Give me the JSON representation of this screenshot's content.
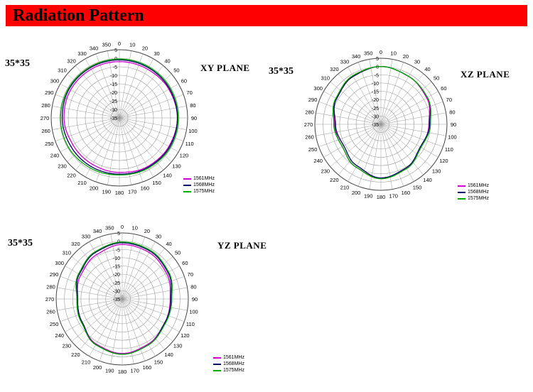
{
  "header": {
    "title": "Radiation Pattern",
    "bar_color": "#ff0000"
  },
  "chart_data": [
    {
      "type": "polar",
      "title": "XY  PLANE",
      "size_label": "35*35",
      "angle_ticks": [
        0,
        10,
        20,
        30,
        40,
        50,
        60,
        70,
        80,
        90,
        100,
        110,
        120,
        130,
        140,
        150,
        160,
        170,
        180,
        190,
        200,
        210,
        220,
        230,
        240,
        250,
        260,
        270,
        280,
        290,
        300,
        310,
        320,
        330,
        340,
        350
      ],
      "radial_ticks": [
        5,
        0,
        -5,
        -10,
        -15,
        -20,
        -25,
        -30,
        -35
      ],
      "rlim": [
        -35,
        5
      ],
      "grid": true,
      "legend": "bottom-right",
      "series": [
        {
          "name": "1561MHz",
          "color": "#cc00cc",
          "angles": [
            0,
            30,
            60,
            90,
            120,
            150,
            180,
            210,
            240,
            270,
            300,
            330
          ],
          "values": [
            -2.0,
            -2.0,
            -1.5,
            -1.0,
            -1.5,
            -2.0,
            -3.0,
            -3.5,
            -3.5,
            -2.5,
            -2.0,
            -2.0
          ]
        },
        {
          "name": "1568MHz",
          "color": "#000066",
          "angles": [
            0,
            30,
            60,
            90,
            120,
            150,
            180,
            210,
            240,
            270,
            300,
            330
          ],
          "values": [
            -1.0,
            -1.0,
            -1.0,
            -1.0,
            -1.0,
            -1.5,
            -2.0,
            -2.0,
            -2.0,
            -1.5,
            -1.0,
            -1.0
          ]
        },
        {
          "name": "1575MHz",
          "color": "#00aa00",
          "angles": [
            0,
            30,
            60,
            90,
            120,
            150,
            180,
            210,
            240,
            270,
            300,
            330
          ],
          "values": [
            -0.5,
            -0.5,
            -0.5,
            -0.5,
            -0.5,
            -1.0,
            -1.5,
            -1.0,
            -0.5,
            -0.5,
            -0.5,
            -0.5
          ]
        }
      ]
    },
    {
      "type": "polar",
      "title": "XZ  PLANE",
      "size_label": "35*35",
      "angle_ticks": [
        0,
        10,
        20,
        30,
        40,
        50,
        60,
        70,
        80,
        90,
        100,
        110,
        120,
        130,
        140,
        150,
        160,
        170,
        180,
        190,
        200,
        210,
        220,
        230,
        240,
        250,
        260,
        270,
        280,
        290,
        300,
        310,
        320,
        330,
        340,
        350
      ],
      "radial_ticks": [
        5,
        0,
        -5,
        -10,
        -15,
        -20,
        -25,
        -30,
        -35
      ],
      "rlim": [
        -35,
        5
      ],
      "grid": true,
      "legend": "bottom-right",
      "series": [
        {
          "name": "1561MHz",
          "color": "#cc00cc",
          "angles": [
            0,
            30,
            60,
            90,
            120,
            150,
            180,
            210,
            240,
            270,
            300,
            330
          ],
          "values": [
            0.0,
            -1.5,
            -3.0,
            -6.0,
            -7.0,
            -4.0,
            -2.0,
            -5.0,
            -8.0,
            -7.0,
            -4.0,
            -1.5
          ]
        },
        {
          "name": "1568MHz",
          "color": "#000066",
          "angles": [
            0,
            30,
            60,
            90,
            120,
            150,
            180,
            210,
            240,
            270,
            300,
            330
          ],
          "values": [
            0.0,
            -1.5,
            -2.5,
            -5.5,
            -7.5,
            -4.5,
            -2.5,
            -6.0,
            -9.0,
            -7.5,
            -4.0,
            -1.5
          ]
        },
        {
          "name": "1575MHz",
          "color": "#00aa00",
          "angles": [
            0,
            30,
            60,
            90,
            120,
            150,
            180,
            210,
            240,
            270,
            300,
            330
          ],
          "values": [
            0.0,
            -1.5,
            -2.5,
            -5.0,
            -7.0,
            -4.0,
            -2.0,
            -5.0,
            -8.0,
            -6.5,
            -3.5,
            -1.0
          ]
        }
      ]
    },
    {
      "type": "polar",
      "title": "YZ  PLANE",
      "size_label": "35*35",
      "angle_ticks": [
        0,
        10,
        20,
        30,
        40,
        50,
        60,
        70,
        80,
        90,
        100,
        110,
        120,
        130,
        140,
        150,
        160,
        170,
        180,
        190,
        200,
        210,
        220,
        230,
        240,
        250,
        260,
        270,
        280,
        290,
        300,
        310,
        320,
        330,
        340,
        350
      ],
      "radial_ticks": [
        5,
        0,
        -5,
        -10,
        -15,
        -20,
        -25,
        -30,
        -35
      ],
      "rlim": [
        -35,
        5
      ],
      "grid": true,
      "legend": "bottom-right",
      "series": [
        {
          "name": "1561MHz",
          "color": "#cc00cc",
          "angles": [
            0,
            30,
            60,
            90,
            120,
            150,
            180,
            210,
            240,
            270,
            300,
            330
          ],
          "values": [
            -2.0,
            -2.5,
            -4.0,
            -6.0,
            -5.5,
            -3.5,
            -2.0,
            -3.5,
            -7.0,
            -8.0,
            -6.0,
            -4.0
          ]
        },
        {
          "name": "1568MHz",
          "color": "#000066",
          "angles": [
            0,
            30,
            60,
            90,
            120,
            150,
            180,
            210,
            240,
            270,
            300,
            330
          ],
          "values": [
            -1.0,
            -1.5,
            -3.0,
            -5.5,
            -5.5,
            -3.0,
            -1.5,
            -3.0,
            -7.0,
            -8.0,
            -5.0,
            -2.5
          ]
        },
        {
          "name": "1575MHz",
          "color": "#00aa00",
          "angles": [
            0,
            30,
            60,
            90,
            120,
            150,
            180,
            210,
            240,
            270,
            300,
            330
          ],
          "values": [
            -0.5,
            -1.0,
            -2.5,
            -5.0,
            -5.0,
            -3.0,
            -1.5,
            -3.0,
            -6.5,
            -7.5,
            -4.5,
            -2.0
          ]
        }
      ]
    }
  ]
}
